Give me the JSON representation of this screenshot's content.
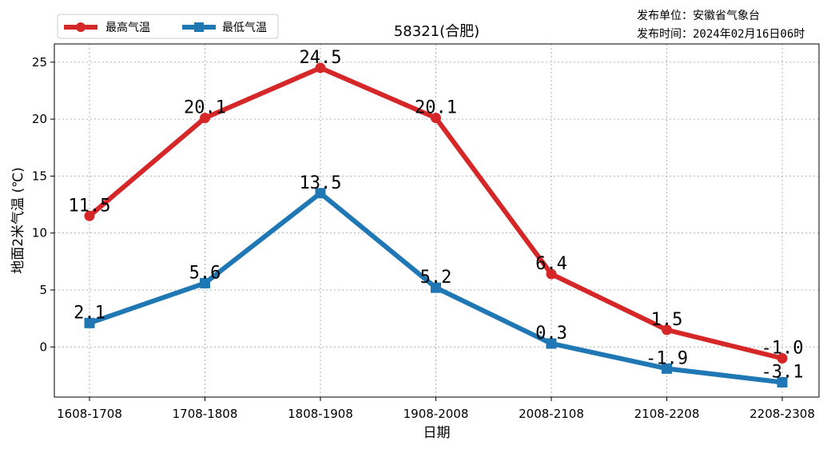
{
  "publisher": {
    "unit_line": "发布单位：安徽省气象台",
    "time_line": "发布时间：2024年02月16日06时"
  },
  "chart_data": {
    "type": "line",
    "title": "58321(合肥)",
    "xlabel": "日期",
    "ylabel": "地面2米气温 (℃)",
    "categories": [
      "1608-1708",
      "1708-1808",
      "1808-1908",
      "1908-2008",
      "2008-2108",
      "2108-2208",
      "2208-2308"
    ],
    "ylim": [
      -4.4,
      26.6
    ],
    "yticks": [
      0,
      5,
      10,
      15,
      20,
      25
    ],
    "grid": true,
    "legend_position": "top-left",
    "series": [
      {
        "name": "最高气温",
        "color": "#d62728",
        "marker": "circle",
        "values": [
          11.5,
          20.1,
          24.5,
          20.1,
          6.4,
          1.5,
          -1.0
        ]
      },
      {
        "name": "最低气温",
        "color": "#1f77b4",
        "marker": "square",
        "values": [
          2.1,
          5.6,
          13.5,
          5.2,
          0.3,
          -1.9,
          -3.1
        ]
      }
    ]
  }
}
